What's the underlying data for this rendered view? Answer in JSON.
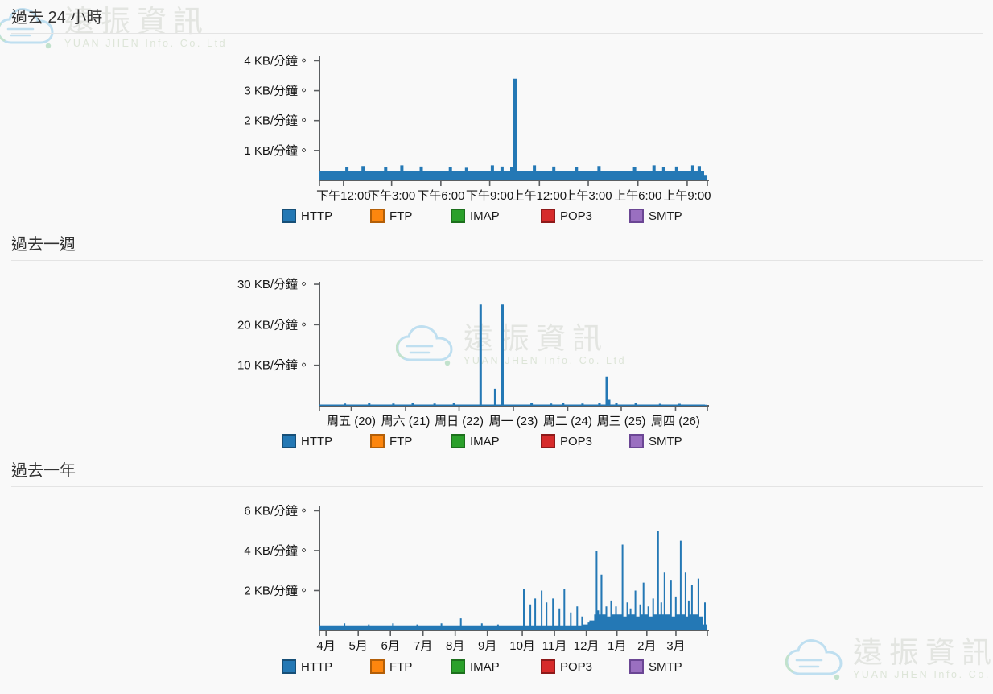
{
  "sections": [
    {
      "title": "過去 24 小時"
    },
    {
      "title": "過去一週"
    },
    {
      "title": "過去一年"
    }
  ],
  "legend": {
    "items": [
      {
        "label": "HTTP",
        "color": "#2478b4",
        "border": "#174f77"
      },
      {
        "label": "FTP",
        "color": "#fd860e",
        "border": "#b35f08"
      },
      {
        "label": "IMAP",
        "color": "#2ba02b",
        "border": "#1d701d"
      },
      {
        "label": "POP3",
        "color": "#d62b2b",
        "border": "#8e1a1a"
      },
      {
        "label": "SMTP",
        "color": "#9a6fc0",
        "border": "#6b4694"
      }
    ]
  },
  "watermark": {
    "title": "遠振資訊",
    "subtitle": "YUAN JHEN Info. Co. Ltd"
  },
  "chart_data": [
    {
      "type": "bar",
      "title": "過去 24 小時",
      "ylabel": "KB/分鐘",
      "ylim": [
        0,
        4.2
      ],
      "grid": false,
      "legend_position": "bottom",
      "values_encoding": "run-length pairs [count, KB/分鐘]",
      "y_ticks": [
        {
          "value": 1,
          "label": "1 KB/分鐘。"
        },
        {
          "value": 2,
          "label": "2 KB/分鐘。"
        },
        {
          "value": 3,
          "label": "3 KB/分鐘。"
        },
        {
          "value": 4,
          "label": "4 KB/分鐘。"
        }
      ],
      "x_ticks": [
        {
          "f": 0.062,
          "label": "下午12:00"
        },
        {
          "f": 0.186,
          "label": "下午3:00"
        },
        {
          "f": 0.313,
          "label": "下午6:00"
        },
        {
          "f": 0.439,
          "label": "下午9:00"
        },
        {
          "f": 0.567,
          "label": "上午12:00"
        },
        {
          "f": 0.693,
          "label": "上午3:00"
        },
        {
          "f": 0.821,
          "label": "上午6:00"
        },
        {
          "f": 0.948,
          "label": "上午9:00"
        }
      ],
      "series": [
        {
          "name": "HTTP",
          "color": "#2478b5",
          "runs": [
            [
              8,
              0.3
            ],
            [
              1,
              0.45
            ],
            [
              4,
              0.3
            ],
            [
              1,
              0.48
            ],
            [
              6,
              0.3
            ],
            [
              1,
              0.44
            ],
            [
              4,
              0.3
            ],
            [
              1,
              0.5
            ],
            [
              5,
              0.3
            ],
            [
              1,
              0.46
            ],
            [
              8,
              0.3
            ],
            [
              1,
              0.44
            ],
            [
              4,
              0.3
            ],
            [
              1,
              0.42
            ],
            [
              7,
              0.3
            ],
            [
              1,
              0.5
            ],
            [
              2,
              0.3
            ],
            [
              1,
              0.46
            ],
            [
              2,
              0.3
            ],
            [
              1,
              0.44
            ],
            [
              1,
              3.4
            ],
            [
              5,
              0.3
            ],
            [
              1,
              0.5
            ],
            [
              5,
              0.3
            ],
            [
              1,
              0.46
            ],
            [
              6,
              0.3
            ],
            [
              1,
              0.44
            ],
            [
              6,
              0.3
            ],
            [
              1,
              0.48
            ],
            [
              10,
              0.3
            ],
            [
              1,
              0.45
            ],
            [
              5,
              0.3
            ],
            [
              1,
              0.5
            ],
            [
              2,
              0.3
            ],
            [
              1,
              0.44
            ],
            [
              3,
              0.3
            ],
            [
              1,
              0.46
            ],
            [
              4,
              0.3
            ],
            [
              1,
              0.5
            ],
            [
              1,
              0.3
            ],
            [
              1,
              0.48
            ],
            [
              1,
              0.3
            ],
            [
              1,
              0.18
            ]
          ]
        }
      ]
    },
    {
      "type": "bar",
      "title": "過去一週",
      "ylabel": "KB/分鐘",
      "ylim": [
        0,
        31
      ],
      "grid": false,
      "legend_position": "bottom",
      "values_encoding": "run-length pairs [count, KB/分鐘]",
      "y_ticks": [
        {
          "value": 10,
          "label": "10 KB/分鐘。"
        },
        {
          "value": 20,
          "label": "20 KB/分鐘。"
        },
        {
          "value": 30,
          "label": "30 KB/分鐘。"
        }
      ],
      "x_ticks": [
        {
          "f": 0.082,
          "label": "周五 (20)"
        },
        {
          "f": 0.222,
          "label": "周六 (21)"
        },
        {
          "f": 0.36,
          "label": "周日 (22)"
        },
        {
          "f": 0.5,
          "label": "周一 (23)"
        },
        {
          "f": 0.64,
          "label": "周二 (24)"
        },
        {
          "f": 0.778,
          "label": "周三 (25)"
        },
        {
          "f": 0.918,
          "label": "周四 (26)"
        }
      ],
      "series": [
        {
          "name": "HTTP",
          "color": "#2478b5",
          "runs": [
            [
              10,
              0.3
            ],
            [
              1,
              0.55
            ],
            [
              9,
              0.3
            ],
            [
              1,
              0.6
            ],
            [
              9,
              0.3
            ],
            [
              1,
              0.55
            ],
            [
              7,
              0.3
            ],
            [
              1,
              0.65
            ],
            [
              8,
              0.3
            ],
            [
              1,
              0.55
            ],
            [
              7,
              0.3
            ],
            [
              1,
              0.6
            ],
            [
              10,
              0.3
            ],
            [
              1,
              25
            ],
            [
              5,
              0.3
            ],
            [
              1,
              4.2
            ],
            [
              2,
              0.3
            ],
            [
              1,
              25
            ],
            [
              11,
              0.3
            ],
            [
              1,
              0.6
            ],
            [
              7,
              0.3
            ],
            [
              1,
              0.55
            ],
            [
              4,
              0.3
            ],
            [
              1,
              0.6
            ],
            [
              7,
              0.3
            ],
            [
              1,
              0.55
            ],
            [
              6,
              0.3
            ],
            [
              1,
              0.6
            ],
            [
              2,
              0.3
            ],
            [
              1,
              7.2
            ],
            [
              1,
              1.5
            ],
            [
              2,
              0.3
            ],
            [
              1,
              0.7
            ],
            [
              7,
              0.3
            ],
            [
              1,
              0.6
            ],
            [
              9,
              0.3
            ],
            [
              1,
              0.5
            ],
            [
              7,
              0.3
            ],
            [
              1,
              0.5
            ],
            [
              10,
              0.3
            ],
            [
              1,
              0.25
            ]
          ]
        }
      ]
    },
    {
      "type": "bar",
      "title": "過去一年",
      "ylabel": "KB/分鐘",
      "ylim": [
        0,
        6.3
      ],
      "grid": false,
      "legend_position": "bottom",
      "values_encoding": "run-length pairs [count, KB/分鐘]",
      "y_ticks": [
        {
          "value": 2,
          "label": "2 KB/分鐘。"
        },
        {
          "value": 4,
          "label": "4 KB/分鐘。"
        },
        {
          "value": 6,
          "label": "6 KB/分鐘。"
        }
      ],
      "x_ticks": [
        {
          "f": 0.017,
          "label": "4月"
        },
        {
          "f": 0.1,
          "label": "5月"
        },
        {
          "f": 0.183,
          "label": "6月"
        },
        {
          "f": 0.267,
          "label": "7月"
        },
        {
          "f": 0.35,
          "label": "8月"
        },
        {
          "f": 0.433,
          "label": "9月"
        },
        {
          "f": 0.523,
          "label": "10月"
        },
        {
          "f": 0.606,
          "label": "11月"
        },
        {
          "f": 0.688,
          "label": "12月"
        },
        {
          "f": 0.767,
          "label": "1月"
        },
        {
          "f": 0.844,
          "label": "2月"
        },
        {
          "f": 0.919,
          "label": "3月"
        }
      ],
      "series": [
        {
          "name": "HTTP",
          "color": "#2478b5",
          "runs": [
            [
              15,
              0.25
            ],
            [
              1,
              0.35
            ],
            [
              14,
              0.25
            ],
            [
              1,
              0.3
            ],
            [
              14,
              0.25
            ],
            [
              1,
              0.35
            ],
            [
              14,
              0.25
            ],
            [
              1,
              0.3
            ],
            [
              14,
              0.25
            ],
            [
              1,
              0.35
            ],
            [
              11,
              0.25
            ],
            [
              1,
              0.6
            ],
            [
              12,
              0.25
            ],
            [
              1,
              0.35
            ],
            [
              9,
              0.25
            ],
            [
              1,
              0.3
            ],
            [
              10,
              0.25
            ],
            [
              5,
              0.25
            ],
            [
              1,
              2.1
            ],
            [
              3,
              0.25
            ],
            [
              1,
              1.3
            ],
            [
              2,
              0.25
            ],
            [
              1,
              1.6
            ],
            [
              3,
              0.25
            ],
            [
              1,
              2.0
            ],
            [
              2,
              0.25
            ],
            [
              1,
              1.4
            ],
            [
              3,
              0.25
            ],
            [
              1,
              1.6
            ],
            [
              3,
              0.25
            ],
            [
              1,
              1.1
            ],
            [
              2,
              0.25
            ],
            [
              1,
              2.1
            ],
            [
              3,
              0.25
            ],
            [
              1,
              0.9
            ],
            [
              3,
              0.25
            ],
            [
              1,
              1.2
            ],
            [
              2,
              0.25
            ],
            [
              1,
              0.7
            ],
            [
              3,
              0.3
            ],
            [
              1,
              0.4
            ],
            [
              3,
              0.5
            ],
            [
              1,
              0.8
            ],
            [
              1,
              4.0
            ],
            [
              1,
              1.0
            ],
            [
              1,
              0.8
            ],
            [
              1,
              2.8
            ],
            [
              2,
              0.8
            ],
            [
              1,
              1.2
            ],
            [
              2,
              0.7
            ],
            [
              1,
              1.5
            ],
            [
              2,
              0.8
            ],
            [
              1,
              1.2
            ],
            [
              3,
              0.8
            ],
            [
              1,
              4.3
            ],
            [
              2,
              0.7
            ],
            [
              1,
              1.4
            ],
            [
              1,
              0.8
            ],
            [
              1,
              1.1
            ],
            [
              2,
              0.8
            ],
            [
              1,
              2.0
            ],
            [
              2,
              0.7
            ],
            [
              1,
              1.3
            ],
            [
              1,
              0.8
            ],
            [
              1,
              2.4
            ],
            [
              2,
              0.8
            ],
            [
              1,
              1.2
            ],
            [
              2,
              0.7
            ],
            [
              1,
              1.6
            ],
            [
              2,
              0.8
            ],
            [
              1,
              5.0
            ],
            [
              1,
              0.8
            ],
            [
              1,
              1.4
            ],
            [
              1,
              0.8
            ],
            [
              1,
              2.9
            ],
            [
              3,
              0.8
            ],
            [
              1,
              2.5
            ],
            [
              2,
              0.7
            ],
            [
              1,
              1.7
            ],
            [
              2,
              0.8
            ],
            [
              1,
              4.5
            ],
            [
              2,
              0.8
            ],
            [
              1,
              2.9
            ],
            [
              1,
              0.7
            ],
            [
              1,
              1.5
            ],
            [
              1,
              0.8
            ],
            [
              1,
              2.3
            ],
            [
              3,
              0.8
            ],
            [
              1,
              2.6
            ],
            [
              2,
              0.7
            ],
            [
              1,
              0.3
            ],
            [
              1,
              1.4
            ],
            [
              1,
              0.3
            ]
          ]
        }
      ]
    }
  ]
}
